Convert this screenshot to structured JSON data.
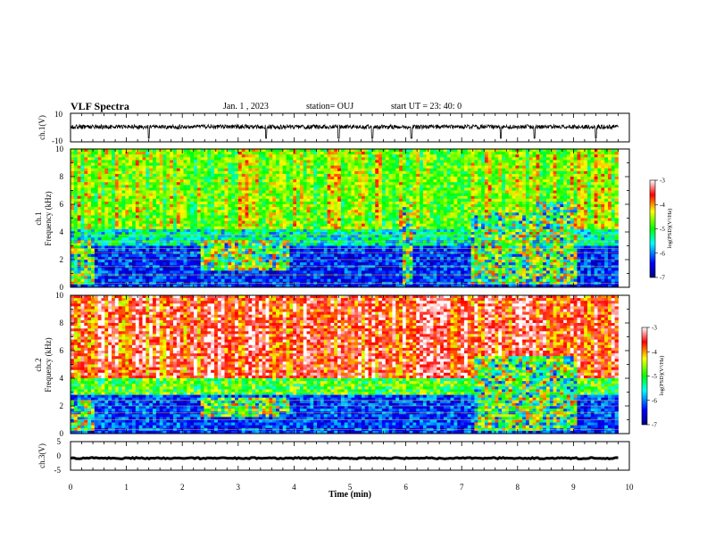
{
  "header": {
    "title": "VLF Spectra",
    "date": "Jan. 1 , 2023",
    "station": "station= OUJ",
    "start_ut": "start UT = 23: 40: 0"
  },
  "chart_data": [
    {
      "type": "line",
      "panel": "ch1-waveform",
      "ylabel": "ch.1(V)",
      "y_tick_labels": [
        "10",
        "-10"
      ],
      "ylim": [
        -10,
        10
      ],
      "baseline": 0.5,
      "noise_amplitude": 1.5,
      "spikes_at_min": [
        1.4,
        3.5,
        4.8,
        5.4,
        6.1,
        7.7,
        8.3,
        9.4
      ],
      "xlim": [
        0,
        10
      ]
    },
    {
      "type": "heatmap",
      "panel": "ch1-spectrogram",
      "ylabel_line1": "ch.1",
      "ylabel_line2": "Frequency (kHz)",
      "y_tick_labels": [
        "0",
        "2",
        "4",
        "6",
        "8",
        "10"
      ],
      "ylim": [
        0,
        10
      ],
      "xlim": [
        0,
        10
      ],
      "data_end_min": 9.8,
      "colorbar": {
        "label": "log(PSD)(V²/Hz)",
        "tick_labels": [
          "-3",
          "-4",
          "-5",
          "-6",
          "-7"
        ],
        "range": [
          -7,
          -3
        ]
      },
      "background_upper_level": -4.6,
      "low_band_level": -6.3,
      "low_band_top_khz": 4.2,
      "tonal_lines_khz": [
        0.3,
        0.9,
        1.5,
        2.0,
        2.5,
        2.8,
        3.3,
        3.8
      ],
      "activity_bursts": [
        {
          "t0": 0.0,
          "t1": 0.45,
          "f0": 0.2,
          "f1": 3.4
        },
        {
          "t0": 2.35,
          "t1": 3.95,
          "f0": 1.2,
          "f1": 3.4
        },
        {
          "t0": 5.95,
          "t1": 6.15,
          "f0": 0.2,
          "f1": 6.0
        },
        {
          "t0": 7.15,
          "t1": 9.05,
          "f0": 0.2,
          "f1": 5.4
        },
        {
          "t0": 8.3,
          "t1": 9.05,
          "f0": 1.0,
          "f1": 6.1
        }
      ]
    },
    {
      "type": "heatmap",
      "panel": "ch2-spectrogram",
      "ylabel_line1": "ch.2",
      "ylabel_line2": "Frequency (kHz)",
      "y_tick_labels": [
        "0",
        "2",
        "4",
        "6",
        "8",
        "10"
      ],
      "ylim": [
        0,
        10
      ],
      "xlim": [
        0,
        10
      ],
      "data_end_min": 9.8,
      "colorbar": {
        "label": "log(PSD)(V²/Hz)",
        "tick_labels": [
          "-3",
          "-4",
          "-5",
          "-6",
          "-7"
        ],
        "range": [
          -7,
          -3
        ]
      },
      "background_upper_level": -3.6,
      "low_band_level": -6.2,
      "low_band_top_khz": 4.0,
      "tonal_lines_khz": [
        0.3,
        1.0,
        1.5,
        2.0,
        2.4,
        3.0,
        3.5
      ],
      "activity_bursts": [
        {
          "t0": 0.0,
          "t1": 0.4,
          "f0": 0.2,
          "f1": 2.4
        },
        {
          "t0": 2.3,
          "t1": 3.95,
          "f0": 1.2,
          "f1": 2.6
        },
        {
          "t0": 7.2,
          "t1": 9.05,
          "f0": 0.2,
          "f1": 5.5
        }
      ]
    },
    {
      "type": "line",
      "panel": "ch3-waveform",
      "ylabel": "ch.3(V)",
      "y_tick_labels": [
        "5",
        "0",
        "-5"
      ],
      "ylim": [
        -5,
        5
      ],
      "baseline": -0.8,
      "noise_amplitude": 0.25,
      "xlim": [
        0,
        10
      ]
    }
  ],
  "x_axis": {
    "label": "Time (min)",
    "tick_labels": [
      "0",
      "1",
      "2",
      "3",
      "4",
      "5",
      "6",
      "7",
      "8",
      "9",
      "10"
    ]
  },
  "colors": {
    "colormap": [
      "#000080",
      "#0000ff",
      "#00ffff",
      "#00ff00",
      "#ffff00",
      "#ff0000",
      "#ffffff"
    ],
    "frame": "#000000"
  }
}
